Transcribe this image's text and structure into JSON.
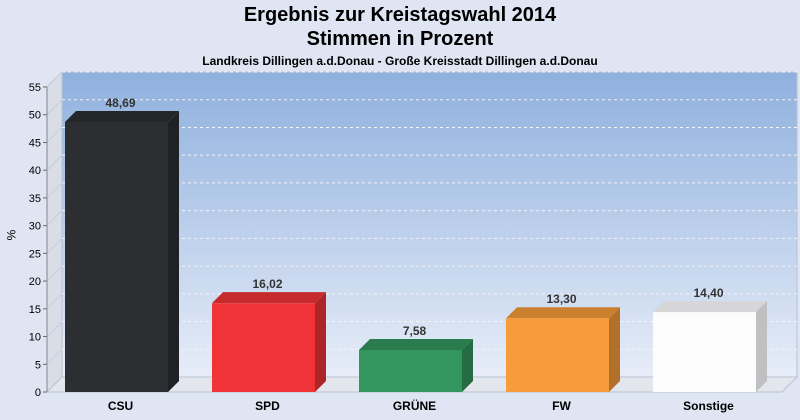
{
  "header": {
    "title": "Ergebnis zur Kreistagswahl 2014",
    "subtitle": "Stimmen in Prozent",
    "region": "Landkreis Dillingen a.d.Donau - Große Kreisstadt Dillingen a.d.Donau"
  },
  "chart_data": {
    "type": "bar",
    "title": "Ergebnis zur Kreistagswahl 2014",
    "subtitle": "Stimmen in Prozent",
    "xlabel": "",
    "ylabel": "%",
    "ylim": [
      0,
      55
    ],
    "yticks": [
      "0",
      "5",
      "10",
      "15",
      "20",
      "25",
      "30",
      "35",
      "40",
      "45",
      "50",
      "55"
    ],
    "grid": true,
    "legend": "none",
    "categories": [
      "CSU",
      "SPD",
      "GRÜNE",
      "FW",
      "Sonstige"
    ],
    "values": [
      48.69,
      16.02,
      7.58,
      13.3,
      14.4
    ],
    "value_labels": [
      "48,69",
      "16,02",
      "7,58",
      "13,30",
      "14,40"
    ],
    "colors": [
      "#2c2e32",
      "#f03336",
      "#33965e",
      "#f79c3a",
      "#fcfcfc"
    ],
    "plot_background": [
      "#8fb0de",
      "#e7edf8"
    ]
  }
}
